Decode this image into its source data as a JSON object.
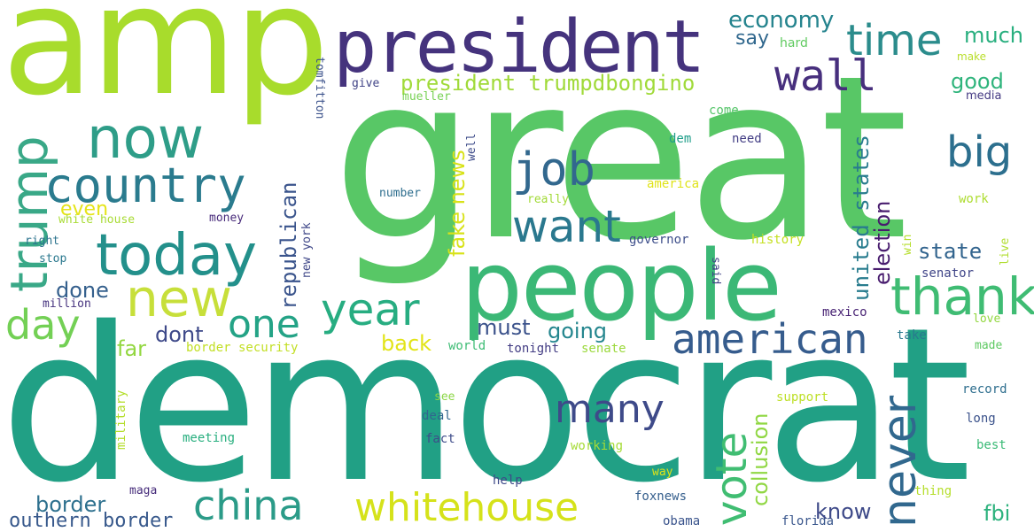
{
  "words": [
    {
      "id": "amp",
      "text": "amp",
      "color": "#a8dc2c"
    },
    {
      "id": "great",
      "text": "great",
      "color": "#58c766"
    },
    {
      "id": "democrat",
      "text": "democrat",
      "color": "#21a085"
    },
    {
      "id": "people",
      "text": "people",
      "color": "#3bb876"
    },
    {
      "id": "president",
      "text": "president",
      "color": "#45337d"
    },
    {
      "id": "time",
      "text": "time",
      "color": "#2b8c8c"
    },
    {
      "id": "now",
      "text": "now",
      "color": "#2e9d88"
    },
    {
      "id": "country",
      "text": "country",
      "color": "#2a7b8e"
    },
    {
      "id": "today",
      "text": "today",
      "color": "#23908b"
    },
    {
      "id": "new",
      "text": "new",
      "color": "#c7df3a"
    },
    {
      "id": "trump",
      "text": "trump",
      "color": "#39a887"
    },
    {
      "id": "wall",
      "text": "wall",
      "color": "#472f7d"
    },
    {
      "id": "job",
      "text": "job",
      "color": "#32688e"
    },
    {
      "id": "want",
      "text": "want",
      "color": "#2a788e"
    },
    {
      "id": "big",
      "text": "big",
      "color": "#2c6f8e"
    },
    {
      "id": "thank",
      "text": "thank",
      "color": "#3fbc73"
    },
    {
      "id": "year",
      "text": "year",
      "color": "#27ad81"
    },
    {
      "id": "one",
      "text": "one",
      "color": "#24a386"
    },
    {
      "id": "day",
      "text": "day",
      "color": "#73d055"
    },
    {
      "id": "american",
      "text": "american",
      "color": "#365c8d"
    },
    {
      "id": "many",
      "text": "many",
      "color": "#3e4a89"
    },
    {
      "id": "vote",
      "text": "vote",
      "color": "#40bd72"
    },
    {
      "id": "never",
      "text": "never",
      "color": "#31688e"
    },
    {
      "id": "china",
      "text": "china",
      "color": "#2b9b88"
    },
    {
      "id": "whitehouse",
      "text": "whitehouse",
      "color": "#d5e21a"
    },
    {
      "id": "economy",
      "text": "economy",
      "color": "#25848e"
    },
    {
      "id": "much",
      "text": "much",
      "color": "#29af7f"
    },
    {
      "id": "say",
      "text": "say",
      "color": "#31688e"
    },
    {
      "id": "hard",
      "text": "hard",
      "color": "#60ca60"
    },
    {
      "id": "make",
      "text": "make",
      "color": "#b8de29"
    },
    {
      "id": "good",
      "text": "good",
      "color": "#2fb47c"
    },
    {
      "id": "media",
      "text": "media",
      "color": "#443983"
    },
    {
      "id": "president_trumpdbongino",
      "text": "president trumpdbongino",
      "color": "#a0da39"
    },
    {
      "id": "give",
      "text": "give",
      "color": "#414487"
    },
    {
      "id": "mueller",
      "text": "mueller",
      "color": "#77d153"
    },
    {
      "id": "tomfitton",
      "text": "tomfitton",
      "color": "#3b528b"
    },
    {
      "id": "come",
      "text": "come",
      "color": "#54c568"
    },
    {
      "id": "dem",
      "text": "dem",
      "color": "#1f9e89"
    },
    {
      "id": "need",
      "text": "need",
      "color": "#433e85"
    },
    {
      "id": "fake_news",
      "text": "fake news",
      "color": "#d8e219"
    },
    {
      "id": "well",
      "text": "well",
      "color": "#3e4c8a"
    },
    {
      "id": "number",
      "text": "number",
      "color": "#2e6e8e"
    },
    {
      "id": "really",
      "text": "really",
      "color": "#a2da37"
    },
    {
      "id": "america",
      "text": "america",
      "color": "#dfe318"
    },
    {
      "id": "united_states",
      "text": "united states",
      "color": "#287c8e"
    },
    {
      "id": "election",
      "text": "election",
      "color": "#481c6e"
    },
    {
      "id": "work",
      "text": "work",
      "color": "#addc30"
    },
    {
      "id": "even",
      "text": "even",
      "color": "#e5e419"
    },
    {
      "id": "white_house",
      "text": "white house",
      "color": "#a8db34"
    },
    {
      "id": "money",
      "text": "money",
      "color": "#472a7a"
    },
    {
      "id": "republican",
      "text": "republican",
      "color": "#3a548c"
    },
    {
      "id": "new_york",
      "text": "new york",
      "color": "#3f4788"
    },
    {
      "id": "governor",
      "text": "governor",
      "color": "#3d4e8a"
    },
    {
      "id": "history",
      "text": "history",
      "color": "#c5e021"
    },
    {
      "id": "win",
      "text": "win",
      "color": "#b5de2b"
    },
    {
      "id": "live",
      "text": "live",
      "color": "#b0dd2f"
    },
    {
      "id": "right",
      "text": "right",
      "color": "#2c738e"
    },
    {
      "id": "stop",
      "text": "stop",
      "color": "#2a788e"
    },
    {
      "id": "state",
      "text": "state",
      "color": "#32648e"
    },
    {
      "id": "senator",
      "text": "senator",
      "color": "#404688"
    },
    {
      "id": "said",
      "text": "said",
      "color": "#414487"
    },
    {
      "id": "done",
      "text": "done",
      "color": "#35608d"
    },
    {
      "id": "million",
      "text": "million",
      "color": "#46337f"
    },
    {
      "id": "mexico",
      "text": "mexico",
      "color": "#482374"
    },
    {
      "id": "love",
      "text": "love",
      "color": "#93d741"
    },
    {
      "id": "dont",
      "text": "dont",
      "color": "#3e4989"
    },
    {
      "id": "must",
      "text": "must",
      "color": "#3b528b"
    },
    {
      "id": "going",
      "text": "going",
      "color": "#24868e"
    },
    {
      "id": "take",
      "text": "take",
      "color": "#29798e"
    },
    {
      "id": "made",
      "text": "made",
      "color": "#5ec962"
    },
    {
      "id": "far",
      "text": "far",
      "color": "#93d741"
    },
    {
      "id": "border_security",
      "text": "border security",
      "color": "#c2df23"
    },
    {
      "id": "back",
      "text": "back",
      "color": "#e2e418"
    },
    {
      "id": "world",
      "text": "world",
      "color": "#3dbc74"
    },
    {
      "id": "tonight",
      "text": "tonight",
      "color": "#433d84"
    },
    {
      "id": "senate",
      "text": "senate",
      "color": "#9bd93c"
    },
    {
      "id": "military",
      "text": "military",
      "color": "#b4de2c"
    },
    {
      "id": "collusion",
      "text": "collusion",
      "color": "#90d743"
    },
    {
      "id": "see",
      "text": "see",
      "color": "#8bd646"
    },
    {
      "id": "deal",
      "text": "deal",
      "color": "#31668e"
    },
    {
      "id": "fact",
      "text": "fact",
      "color": "#3e4c8a"
    },
    {
      "id": "support",
      "text": "support",
      "color": "#bddf26"
    },
    {
      "id": "record",
      "text": "record",
      "color": "#2e6e8e"
    },
    {
      "id": "long",
      "text": "long",
      "color": "#3b528b"
    },
    {
      "id": "best",
      "text": "best",
      "color": "#3aba76"
    },
    {
      "id": "meeting",
      "text": "meeting",
      "color": "#29af7f"
    },
    {
      "id": "working",
      "text": "working",
      "color": "#a5db36"
    },
    {
      "id": "way",
      "text": "way",
      "color": "#dde318"
    },
    {
      "id": "border",
      "text": "border",
      "color": "#2d708e"
    },
    {
      "id": "maga",
      "text": "maga",
      "color": "#472d7b"
    },
    {
      "id": "help",
      "text": "help",
      "color": "#3e4a89"
    },
    {
      "id": "foxnews",
      "text": "foxnews",
      "color": "#355f8d"
    },
    {
      "id": "thing",
      "text": "thing",
      "color": "#b5de2b"
    },
    {
      "id": "southern_border",
      "text": "outhern border",
      "color": "#38598c"
    },
    {
      "id": "obama",
      "text": "obama",
      "color": "#3a548c"
    },
    {
      "id": "florida",
      "text": "florida",
      "color": "#39568c"
    },
    {
      "id": "know",
      "text": "know",
      "color": "#3e4a89"
    },
    {
      "id": "fbi",
      "text": "fbi",
      "color": "#2db27d"
    }
  ]
}
